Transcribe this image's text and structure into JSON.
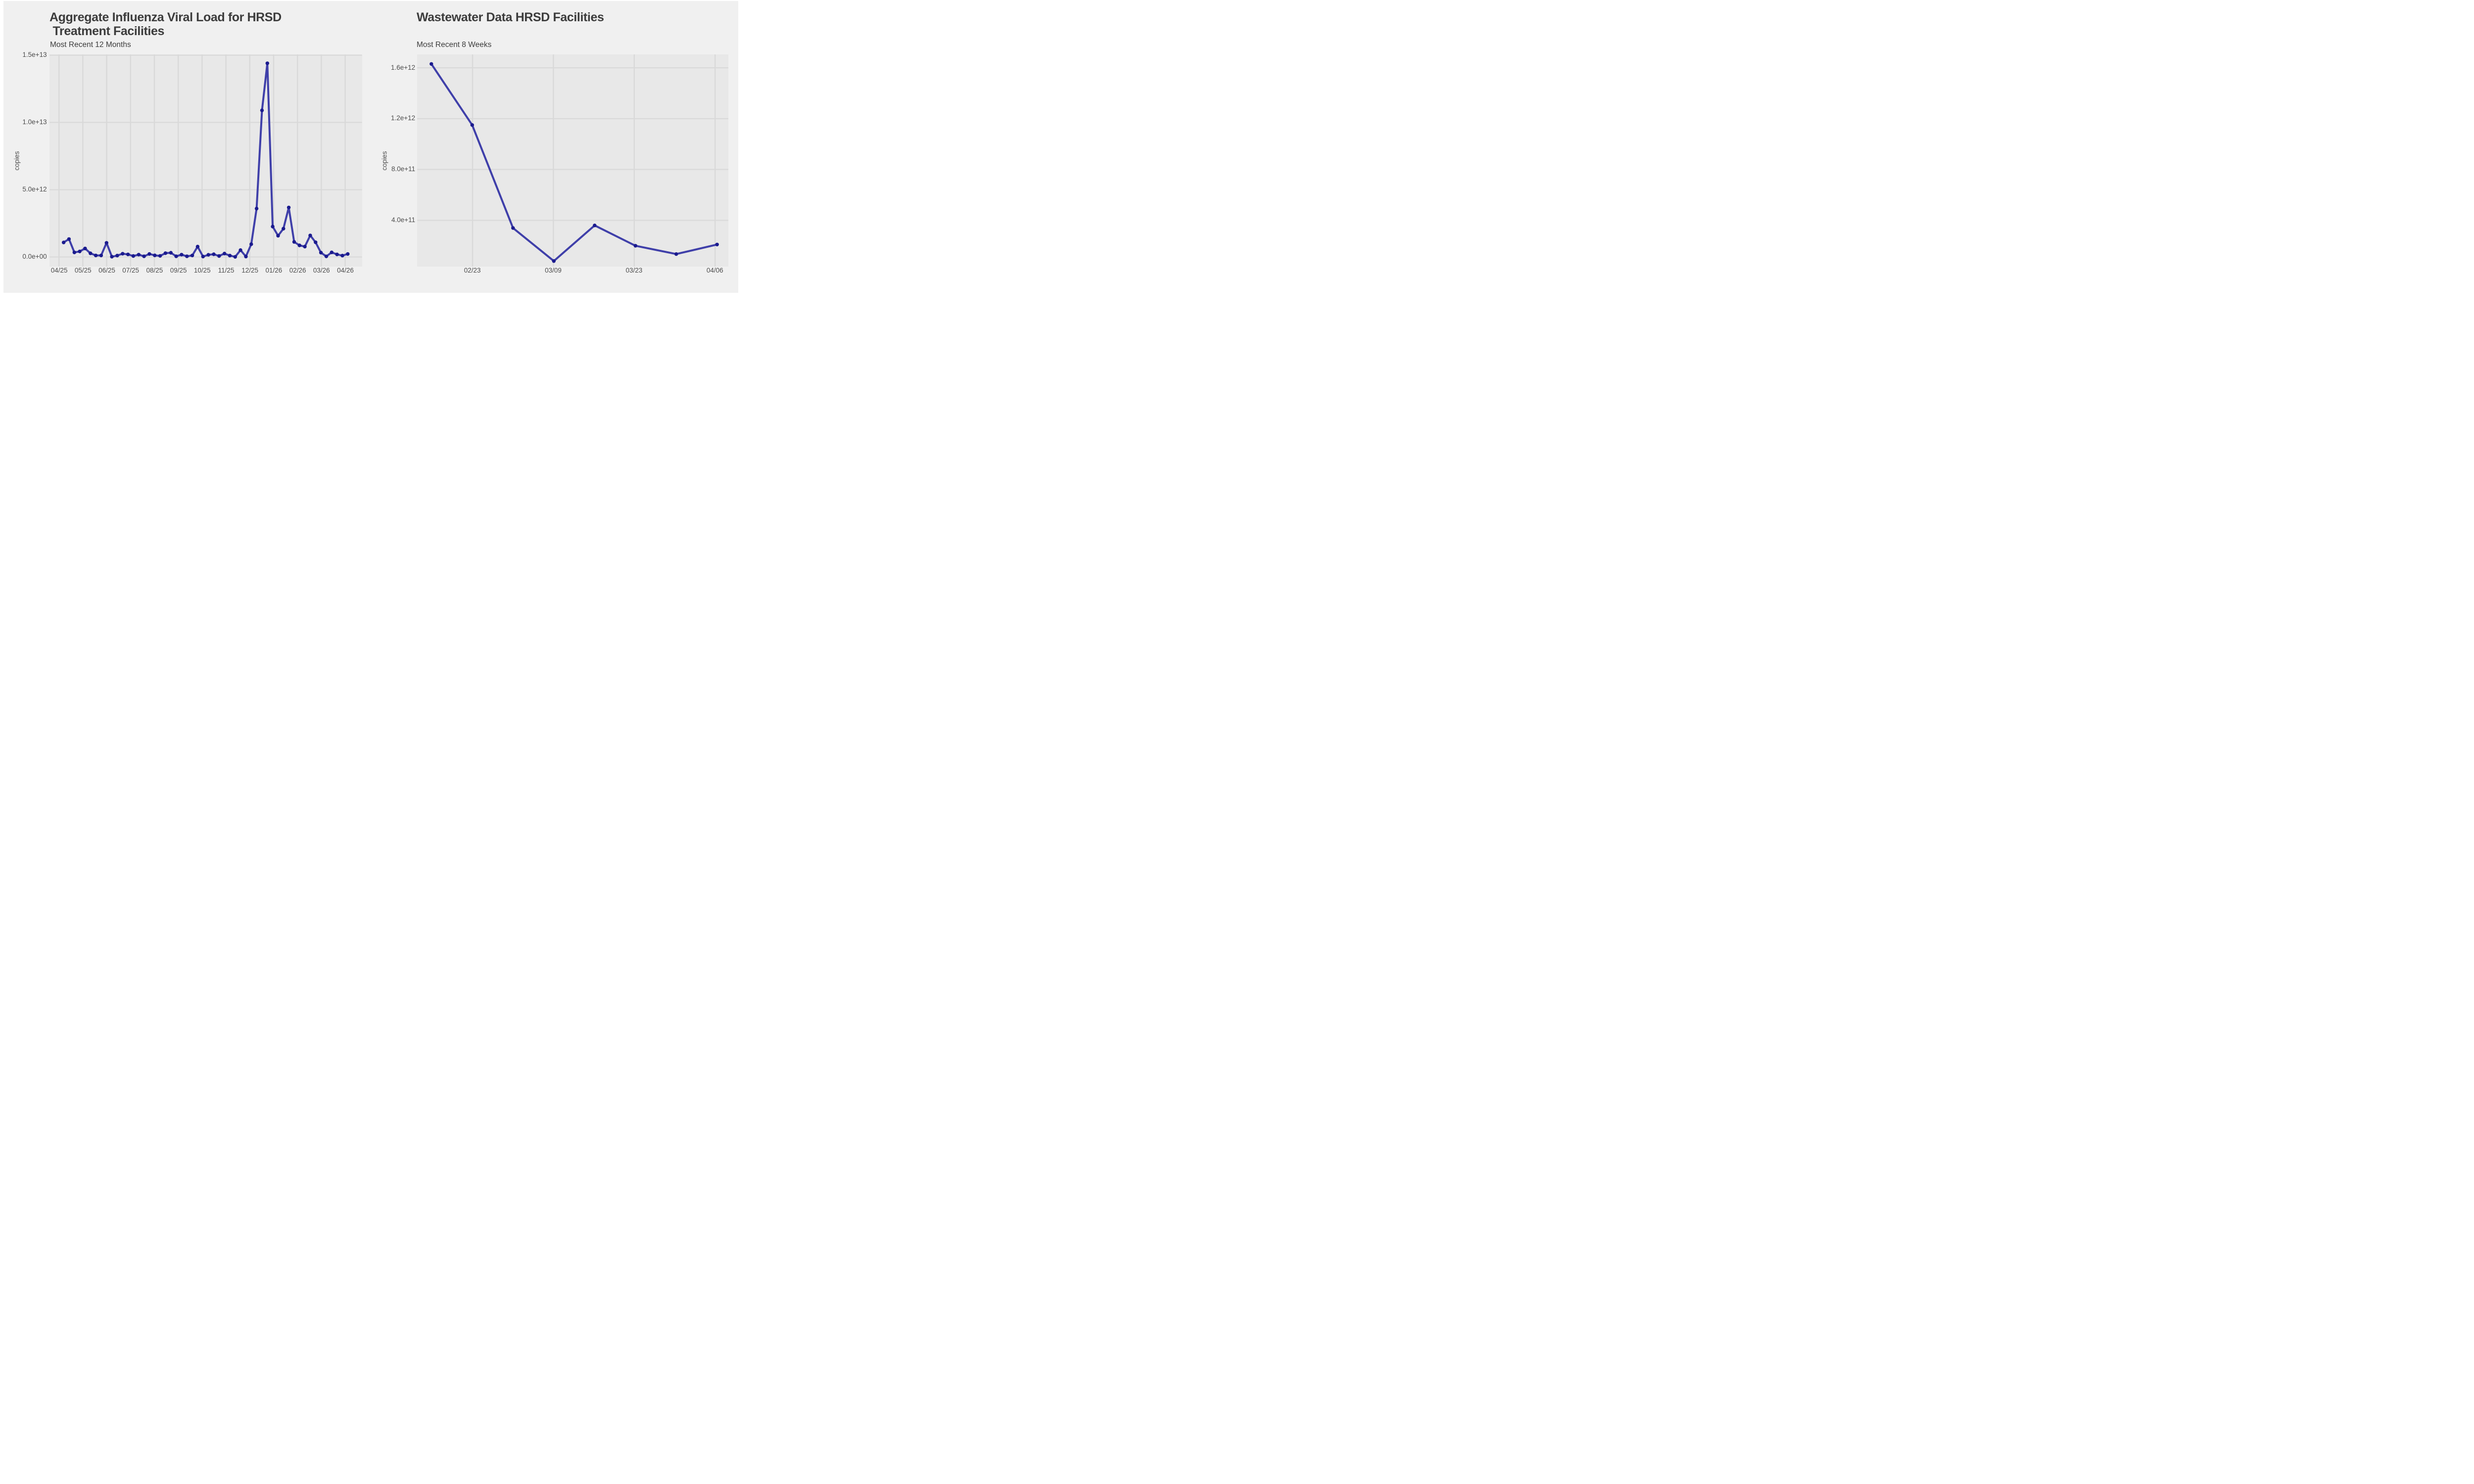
{
  "page": {
    "background_color": "#ffffff",
    "figure_background_color": "#f0f0f0",
    "panel_background_color": "#e8e8e8",
    "gridline_color": "#d9d9d9",
    "text_color": "#3c3c3c",
    "tick_text_color": "#4d4d4d"
  },
  "chart_data": [
    {
      "type": "line",
      "title": "Aggregate Influenza Viral Load for HRSD\n Treatment Facilities",
      "subtitle": "Most Recent 12 Months",
      "xlabel": "",
      "ylabel": "copies",
      "grid": true,
      "legend": false,
      "x_tick_labels": [
        "04/25",
        "05/25",
        "06/25",
        "07/25",
        "08/25",
        "09/25",
        "10/25",
        "11/25",
        "12/25",
        "01/26",
        "02/26",
        "03/26",
        "04/26"
      ],
      "y_tick_labels": [
        "0.0e+00",
        "5.0e+12",
        "1.0e+13",
        "1.5e+13"
      ],
      "y_tick_values": [
        0,
        5000000000000.0,
        10000000000000.0,
        15000000000000.0
      ],
      "ylim": [
        -720000000000.0,
        15060000000000.0
      ],
      "x_description": "weekly samples spanning 04/25 through 04/26",
      "series": [
        {
          "name": "Aggregate influenza viral load",
          "color": "#3f3fa9",
          "point_color": "#1b1b8e",
          "values": [
            1080000000000.0,
            1330000000000.0,
            340000000000.0,
            410000000000.0,
            630000000000.0,
            270000000000.0,
            110000000000.0,
            110000000000.0,
            1050000000000.0,
            20000000000.0,
            100000000000.0,
            240000000000.0,
            190000000000.0,
            70000000000.0,
            170000000000.0,
            50000000000.0,
            220000000000.0,
            120000000000.0,
            80000000000.0,
            280000000000.0,
            310000000000.0,
            50000000000.0,
            170000000000.0,
            50000000000.0,
            110000000000.0,
            770000000000.0,
            30000000000.0,
            160000000000.0,
            200000000000.0,
            70000000000.0,
            250000000000.0,
            100000000000.0,
            10000000000.0,
            510000000000.0,
            30000000000.0,
            950000000000.0,
            3600000000000.0,
            10900000000000.0,
            14400000000000.0,
            2260000000000.0,
            1580000000000.0,
            2100000000000.0,
            3680000000000.0,
            1120000000000.0,
            860000000000.0,
            770000000000.0,
            1600000000000.0,
            1090000000000.0,
            320000000000.0,
            40000000000.0,
            340000000000.0,
            190000000000.0,
            100000000000.0,
            220000000000.0
          ]
        }
      ]
    },
    {
      "type": "line",
      "title": "Wastewater Data HRSD Facilities",
      "subtitle": "Most Recent 8 Weeks",
      "xlabel": "",
      "ylabel": "copies",
      "grid": true,
      "legend": false,
      "x_tick_labels": [
        "02/23",
        "03/09",
        "03/23",
        "04/06"
      ],
      "y_tick_labels": [
        "4.0e+11",
        "8.0e+11",
        "1.2e+12",
        "1.6e+12"
      ],
      "y_tick_values": [
        400000000000.0,
        800000000000.0,
        1200000000000.0,
        1600000000000.0
      ],
      "ylim": [
        36000000000.0,
        1705000000000.0
      ],
      "x": [
        "02/16",
        "02/23",
        "03/02",
        "03/09",
        "03/16",
        "03/23",
        "03/30",
        "04/06"
      ],
      "series": [
        {
          "name": "Wastewater viral load",
          "color": "#3f3fa9",
          "point_color": "#1b1b8e",
          "values": [
            1630000000000.0,
            1150000000000.0,
            340000000000.0,
            80000000000.0,
            360000000000.0,
            200000000000.0,
            135000000000.0,
            210000000000.0
          ]
        }
      ]
    }
  ]
}
